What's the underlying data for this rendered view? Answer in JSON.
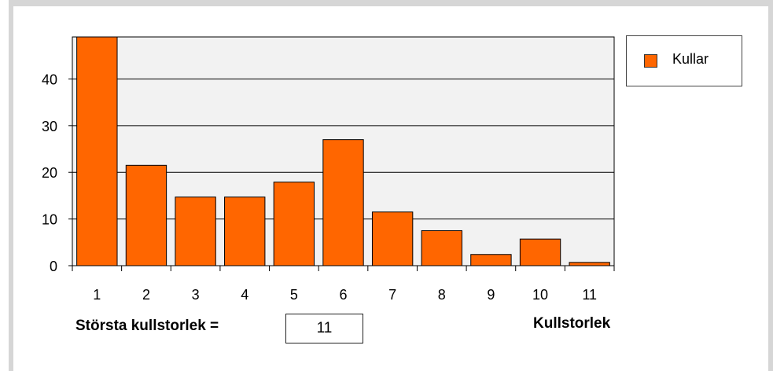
{
  "chart_data": {
    "type": "bar",
    "categories": [
      "1",
      "2",
      "3",
      "4",
      "5",
      "6",
      "7",
      "8",
      "9",
      "10",
      "11"
    ],
    "series": [
      {
        "name": "Kullar",
        "values": [
          49,
          21.5,
          14.7,
          14.7,
          17.9,
          27,
          11.5,
          7.5,
          2.4,
          5.7,
          0.7
        ]
      }
    ],
    "yticks": [
      0,
      10,
      20,
      30,
      40
    ],
    "ylim": [
      0,
      49
    ],
    "xlabel": "Kullstorlek",
    "ylabel": "",
    "title": "",
    "grid": true,
    "legend_position": "top-right",
    "bar_color": "#ff6600",
    "plot_background": "#f2f2f2"
  },
  "controls": {
    "max_label": "Största kullstorlek =",
    "max_value": "11"
  }
}
